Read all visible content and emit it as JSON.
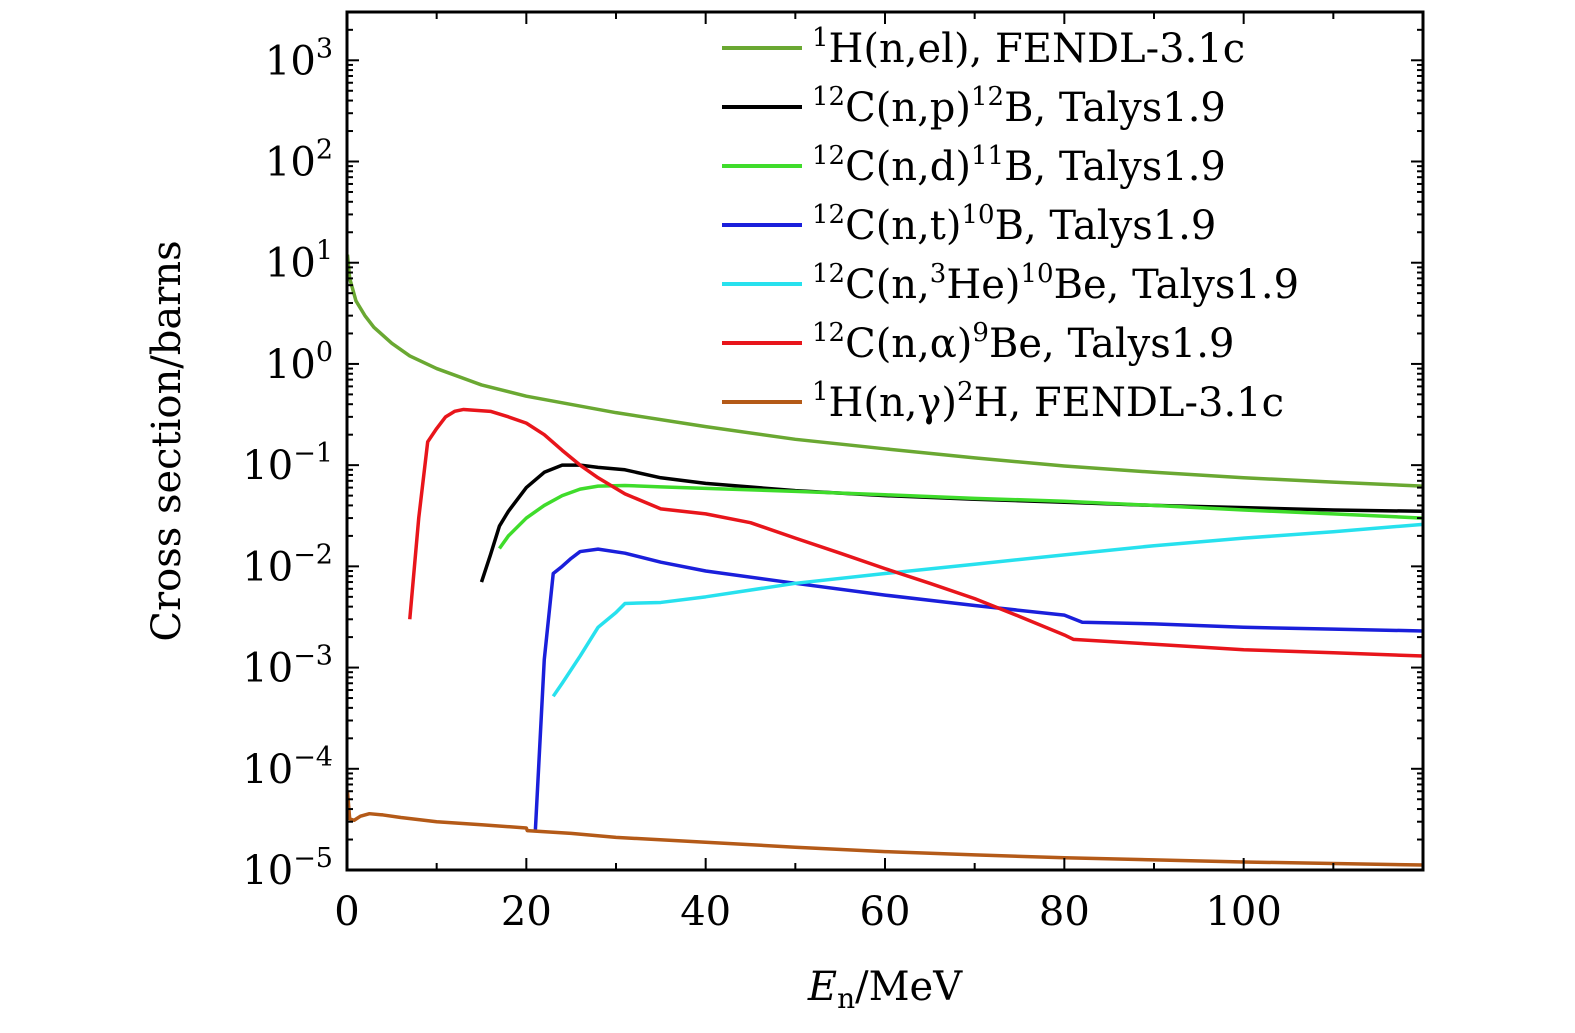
{
  "chart_data": {
    "type": "line",
    "title": "",
    "xlabel": {
      "symbol": "E",
      "subscript": "n",
      "unit": "/MeV"
    },
    "ylabel": "Cross section/barns",
    "xlim": [
      0,
      120
    ],
    "ylim": [
      1e-05,
      3000
    ],
    "yscale": "log",
    "x_ticks": [
      "0",
      "20",
      "40",
      "60",
      "80",
      "100"
    ],
    "x_tick_values": [
      0,
      20,
      40,
      60,
      80,
      100
    ],
    "y_ticks": [
      {
        "base": "10",
        "exp": "3",
        "value": 1000
      },
      {
        "base": "10",
        "exp": "2",
        "value": 100
      },
      {
        "base": "10",
        "exp": "1",
        "value": 10
      },
      {
        "base": "10",
        "exp": "0",
        "value": 1
      },
      {
        "base": "10",
        "exp": "−1",
        "value": 0.1
      },
      {
        "base": "10",
        "exp": "−2",
        "value": 0.01
      },
      {
        "base": "10",
        "exp": "−3",
        "value": 0.001
      },
      {
        "base": "10",
        "exp": "−4",
        "value": 0.0001
      },
      {
        "base": "10",
        "exp": "−5",
        "value": 1e-05
      }
    ],
    "legend_position": "top-right",
    "series": [
      {
        "name": "1H(n,el), FENDL-3.1c",
        "label_parts": [
          [
            "sup",
            "1"
          ],
          [
            "t",
            "H(n,el), FENDL-3.1c"
          ]
        ],
        "color": "#6aa832",
        "x": [
          0.05,
          0.3,
          1,
          2,
          3,
          5,
          7,
          10,
          15,
          20,
          30,
          40,
          50,
          60,
          70,
          80,
          90,
          100,
          110,
          120
        ],
        "y": [
          12,
          7,
          4.2,
          3.0,
          2.3,
          1.6,
          1.2,
          0.9,
          0.62,
          0.48,
          0.33,
          0.24,
          0.18,
          0.145,
          0.118,
          0.098,
          0.085,
          0.075,
          0.068,
          0.062
        ]
      },
      {
        "name": "12C(n,p)12B, Talys1.9",
        "label_parts": [
          [
            "sup",
            "12"
          ],
          [
            "t",
            "C(n,p)"
          ],
          [
            "sup",
            "12"
          ],
          [
            "t",
            "B, Talys1.9"
          ]
        ],
        "color": "#000000",
        "x": [
          15,
          16,
          17,
          18,
          20,
          22,
          24,
          26,
          28,
          31,
          35,
          40,
          50,
          60,
          70,
          80,
          90,
          100,
          110,
          120
        ],
        "y": [
          0.007,
          0.013,
          0.025,
          0.035,
          0.06,
          0.085,
          0.1,
          0.1,
          0.095,
          0.09,
          0.075,
          0.066,
          0.056,
          0.05,
          0.046,
          0.043,
          0.04,
          0.038,
          0.036,
          0.035
        ]
      },
      {
        "name": "12C(n,d)11B, Talys1.9",
        "label_parts": [
          [
            "sup",
            "12"
          ],
          [
            "t",
            "C(n,d)"
          ],
          [
            "sup",
            "11"
          ],
          [
            "t",
            "B, Talys1.9"
          ]
        ],
        "color": "#3fdc2b",
        "x": [
          17,
          18,
          20,
          22,
          24,
          26,
          28,
          31,
          35,
          40,
          50,
          60,
          70,
          80,
          90,
          100,
          110,
          120
        ],
        "y": [
          0.015,
          0.02,
          0.03,
          0.04,
          0.05,
          0.058,
          0.062,
          0.063,
          0.061,
          0.059,
          0.055,
          0.051,
          0.047,
          0.044,
          0.04,
          0.036,
          0.033,
          0.03
        ]
      },
      {
        "name": "12C(n,t)10B, Talys1.9",
        "label_parts": [
          [
            "sup",
            "12"
          ],
          [
            "t",
            "C(n,t)"
          ],
          [
            "sup",
            "10"
          ],
          [
            "t",
            "B, Talys1.9"
          ]
        ],
        "color": "#1a1fdb",
        "x": [
          21,
          22,
          23,
          24,
          25,
          26,
          28,
          31,
          35,
          40,
          50,
          60,
          70,
          80,
          82,
          90,
          100,
          110,
          120
        ],
        "y": [
          2.4e-05,
          0.0012,
          0.0085,
          0.01,
          0.012,
          0.014,
          0.0148,
          0.0135,
          0.011,
          0.009,
          0.0068,
          0.0052,
          0.0041,
          0.0033,
          0.0028,
          0.0027,
          0.0025,
          0.0024,
          0.0023
        ]
      },
      {
        "name": "12C(n,3He)10Be, Talys1.9",
        "label_parts": [
          [
            "sup",
            "12"
          ],
          [
            "t",
            "C(n,"
          ],
          [
            "sup",
            "3"
          ],
          [
            "t",
            "He)"
          ],
          [
            "sup",
            "10"
          ],
          [
            "t",
            "Be, Talys1.9"
          ]
        ],
        "color": "#27e1ee",
        "x": [
          23,
          24,
          26,
          28,
          30,
          31,
          35,
          40,
          50,
          60,
          70,
          80,
          90,
          100,
          110,
          120
        ],
        "y": [
          0.00052,
          0.0007,
          0.0013,
          0.0025,
          0.0035,
          0.0043,
          0.0044,
          0.005,
          0.0068,
          0.0085,
          0.0105,
          0.013,
          0.016,
          0.019,
          0.022,
          0.026
        ]
      },
      {
        "name": "12C(n,α)9Be, Talys1.9",
        "label_parts": [
          [
            "sup",
            "12"
          ],
          [
            "t",
            "C(n,α)"
          ],
          [
            "sup",
            "9"
          ],
          [
            "t",
            "Be, Talys1.9"
          ]
        ],
        "color": "#e8151b",
        "x": [
          7,
          8,
          9,
          10,
          11,
          12,
          13,
          14,
          16,
          18,
          20,
          22,
          24,
          26,
          28,
          31,
          35,
          40,
          45,
          50,
          55,
          60,
          65,
          70,
          75,
          80,
          81,
          90,
          100,
          110,
          120
        ],
        "y": [
          0.003,
          0.03,
          0.17,
          0.23,
          0.3,
          0.34,
          0.355,
          0.35,
          0.34,
          0.3,
          0.26,
          0.2,
          0.14,
          0.1,
          0.075,
          0.052,
          0.037,
          0.033,
          0.027,
          0.019,
          0.0135,
          0.0095,
          0.0068,
          0.0048,
          0.0032,
          0.0021,
          0.0019,
          0.0017,
          0.0015,
          0.0014,
          0.0013
        ]
      },
      {
        "name": "1H(n,γ)2H, FENDL-3.1c",
        "label_parts": [
          [
            "sup",
            "1"
          ],
          [
            "t",
            "H(n,γ)"
          ],
          [
            "sup",
            "2"
          ],
          [
            "t",
            "H, FENDL-3.1c"
          ]
        ],
        "color": "#b45a18",
        "x": [
          0.05,
          0.3,
          0.8,
          1.5,
          2.5,
          4,
          6,
          10,
          15,
          20,
          20.1,
          25,
          30,
          40,
          50,
          60,
          70,
          80,
          90,
          100,
          110,
          120
        ],
        "y": [
          6e-05,
          3.2e-05,
          3.1e-05,
          3.4e-05,
          3.6e-05,
          3.5e-05,
          3.3e-05,
          3e-05,
          2.8e-05,
          2.6e-05,
          2.45e-05,
          2.3e-05,
          2.1e-05,
          1.88e-05,
          1.68e-05,
          1.52e-05,
          1.41e-05,
          1.32e-05,
          1.26e-05,
          1.2e-05,
          1.16e-05,
          1.12e-05
        ]
      }
    ]
  }
}
